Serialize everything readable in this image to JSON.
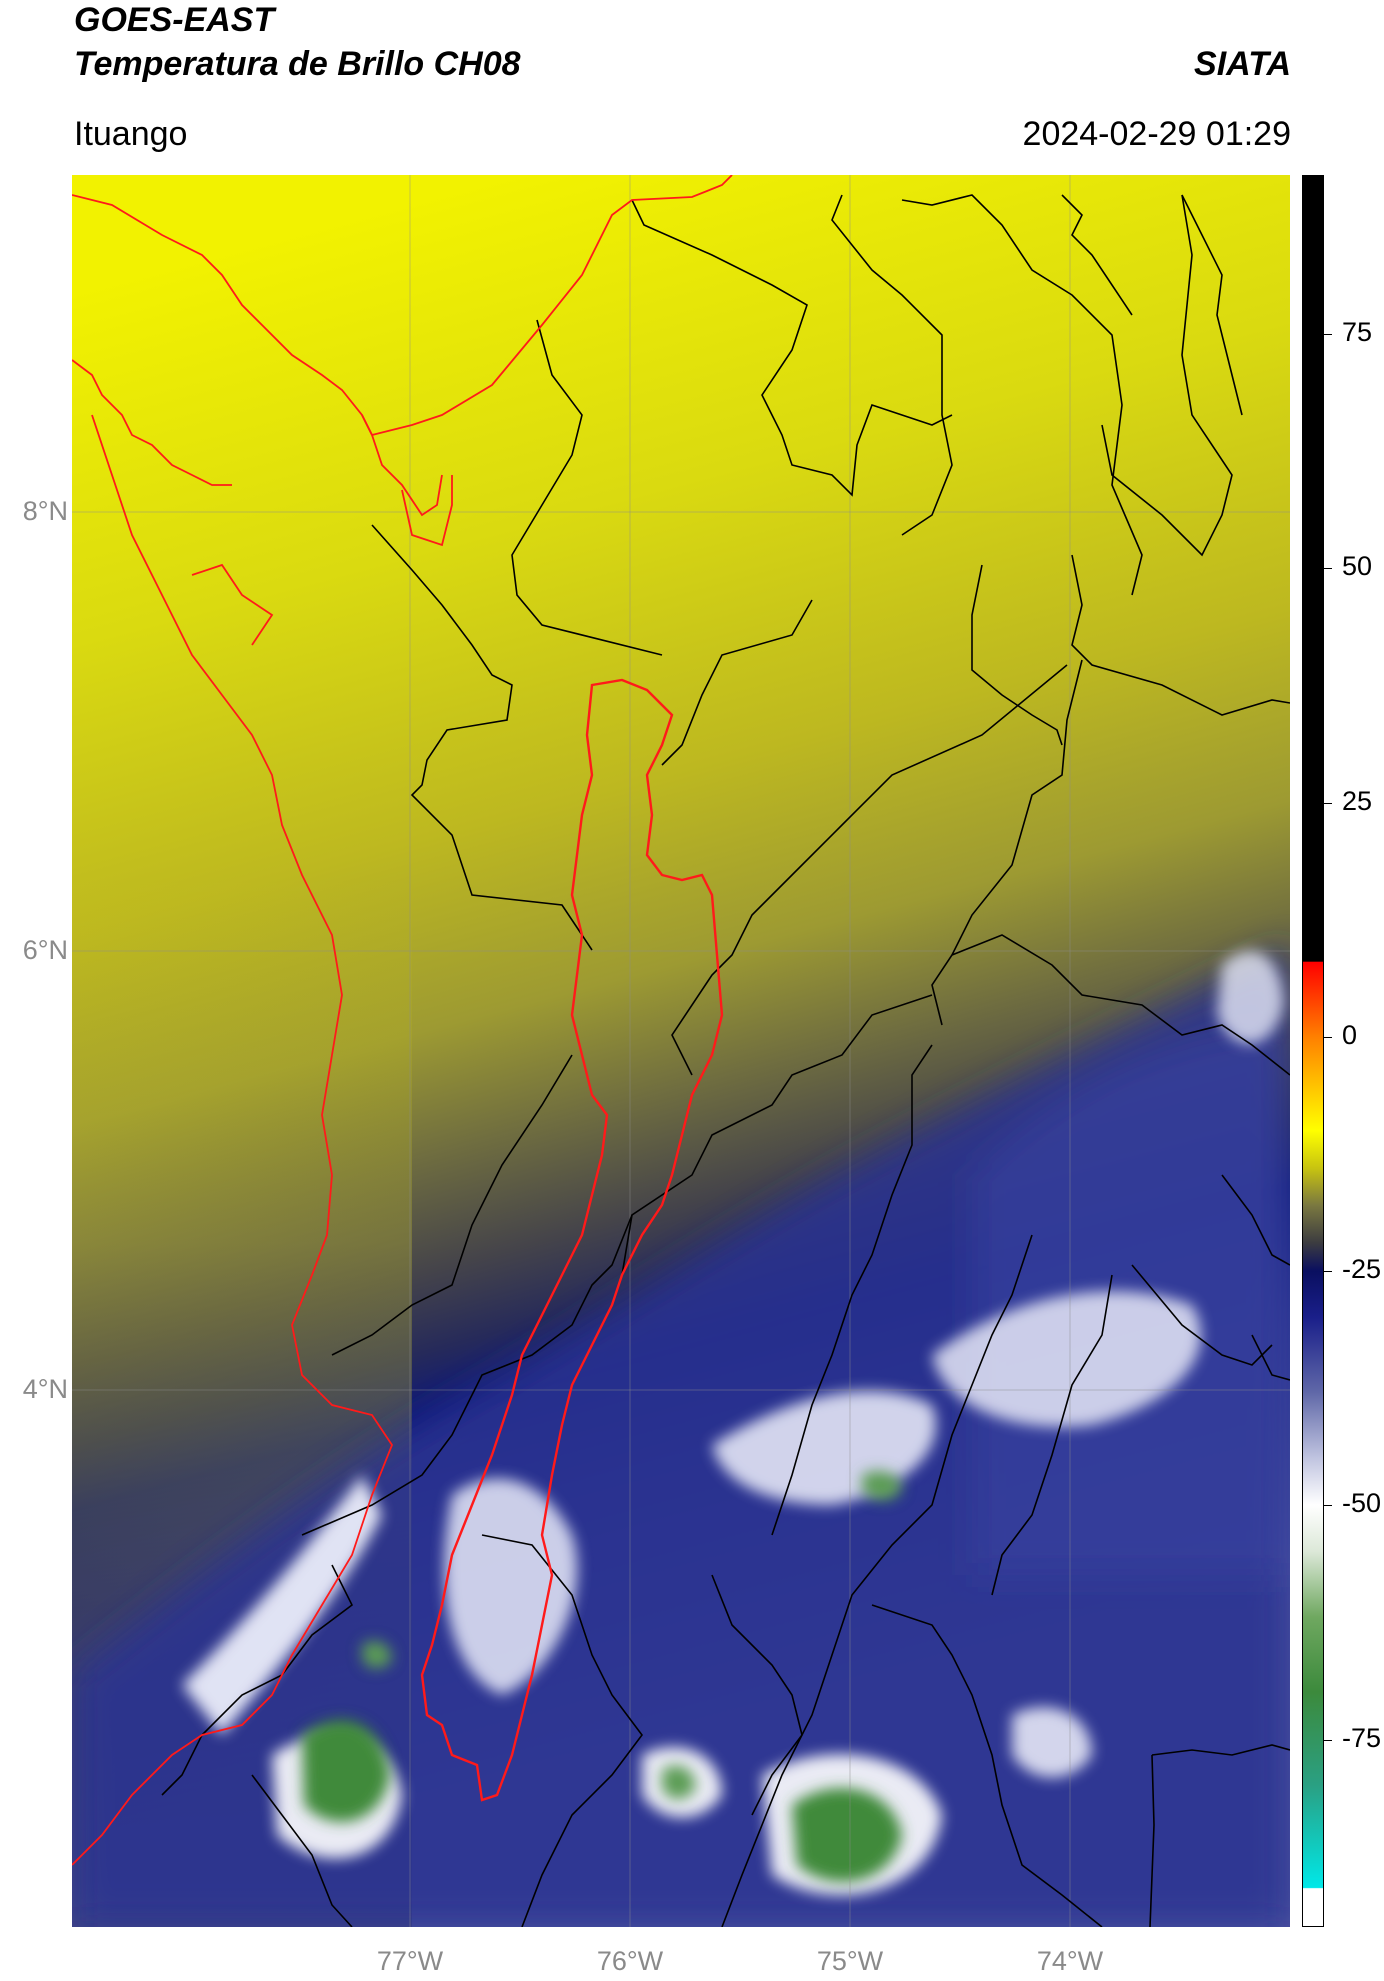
{
  "header": {
    "satellite": "GOES-EAST",
    "product": "Temperatura de Brillo CH08",
    "brand": "SIATA",
    "region": "Ituango",
    "timestamp": "2024-02-29 01:29"
  },
  "map": {
    "lat_ticks": [
      {
        "value": 8,
        "label": "8°N"
      },
      {
        "value": 6,
        "label": "6°N"
      },
      {
        "value": 4,
        "label": "4°N"
      }
    ],
    "lon_ticks": [
      {
        "value": -77,
        "label": "77°W"
      },
      {
        "value": -76,
        "label": "76°W"
      },
      {
        "value": -75,
        "label": "75°W"
      },
      {
        "value": -74,
        "label": "74°W"
      }
    ],
    "extent": {
      "lon_min": -78.54,
      "lon_max": -73.0,
      "lat_min": 1.7,
      "lat_max": 9.55
    },
    "colors": {
      "warm_yellow": "#f2f200",
      "mid_olive": "#9c9a30",
      "dark_grey": "#3c3c46",
      "deep_blue": "#0d1a78",
      "pale_blue": "#8d93c6",
      "cloud_white": "#ffffff",
      "cold_green": "#3f8a3a",
      "basin_outline": "#ff1a1a",
      "boundaries": "#000000"
    }
  },
  "colorbar": {
    "min": -95,
    "max": 92,
    "ticks": [
      {
        "value": 75,
        "label": "75"
      },
      {
        "value": 50,
        "label": "50"
      },
      {
        "value": 25,
        "label": "25"
      },
      {
        "value": 0,
        "label": "0"
      },
      {
        "value": -25,
        "label": "-25"
      },
      {
        "value": -50,
        "label": "-50"
      },
      {
        "value": -75,
        "label": "-75"
      }
    ],
    "stops": [
      {
        "value": -95,
        "color": "#ffffff"
      },
      {
        "value": -91,
        "color": "#ffffff"
      },
      {
        "value": -90.9,
        "color": "#00e8e8"
      },
      {
        "value": -80,
        "color": "#2aa083"
      },
      {
        "value": -70,
        "color": "#3c8a3c"
      },
      {
        "value": -62,
        "color": "#6fa860"
      },
      {
        "value": -55,
        "color": "#dce8d8"
      },
      {
        "value": -50,
        "color": "#ffffff"
      },
      {
        "value": -45,
        "color": "#c0c4e0"
      },
      {
        "value": -38,
        "color": "#6068a8"
      },
      {
        "value": -30,
        "color": "#1a1f8a"
      },
      {
        "value": -25,
        "color": "#0a0f60"
      },
      {
        "value": -22,
        "color": "#3c3c40"
      },
      {
        "value": -18,
        "color": "#7a7840"
      },
      {
        "value": -14,
        "color": "#c8c410"
      },
      {
        "value": -10,
        "color": "#ffff00"
      },
      {
        "value": -5,
        "color": "#ffc000"
      },
      {
        "value": 0,
        "color": "#ff8000"
      },
      {
        "value": 5,
        "color": "#ff3000"
      },
      {
        "value": 8,
        "color": "#ff0000"
      },
      {
        "value": 8.1,
        "color": "#000000"
      },
      {
        "value": 92,
        "color": "#000000"
      }
    ]
  }
}
